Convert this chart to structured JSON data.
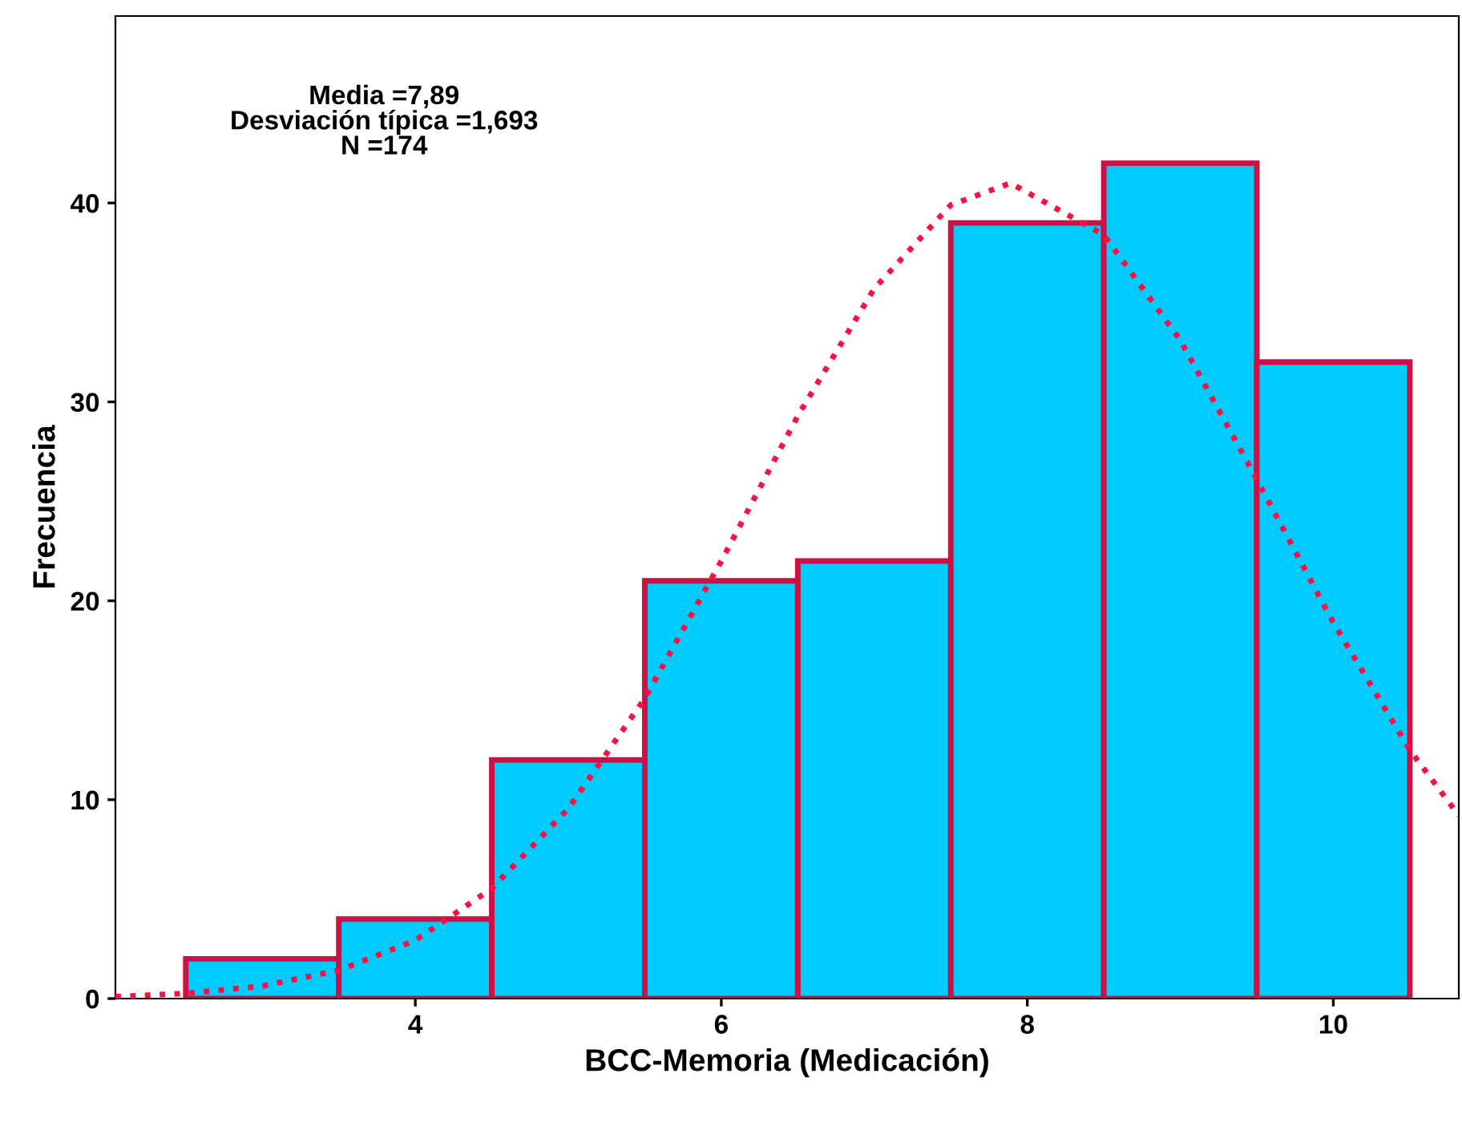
{
  "chart_data": {
    "type": "histogram",
    "xlabel": "BCC-Memoria (Medicación)",
    "ylabel": "Frecuencia",
    "annotations": [
      "Media =7,89\nDesviación típica =1,693\nN =174"
    ],
    "bins": [
      2.5,
      3.5,
      4.5,
      5.5,
      6.5,
      7.5,
      8.5,
      9.5,
      10.5
    ],
    "values": [
      2,
      4,
      12,
      21,
      22,
      39,
      42,
      32
    ],
    "color": "#00ccff",
    "series": [
      {
        "type": "line",
        "color": "#ff0f3f",
        "line_style": "dotted",
        "x": [
          2.04,
          2.5,
          3,
          3.5,
          4,
          4.5,
          5,
          5.5,
          6,
          6.5,
          7,
          7.5,
          7.89,
          8.5,
          9,
          9.5,
          10,
          10.5,
          10.82
        ],
        "values": [
          0.1,
          0.26,
          0.63,
          1.42,
          2.93,
          5.53,
          9.55,
          15.1,
          22.0,
          29.3,
          35.7,
          39.9,
          41.0,
          38.4,
          33.1,
          26.1,
          18.9,
          12.5,
          9.2
        ]
      }
    ],
    "xlim": [
      2.04,
      10.82
    ],
    "ylim": [
      0,
      49.4
    ],
    "xticks": [
      4,
      6,
      8,
      10
    ],
    "yticks": [
      0,
      10,
      20,
      30,
      40
    ],
    "grid": false,
    "legend": false
  }
}
